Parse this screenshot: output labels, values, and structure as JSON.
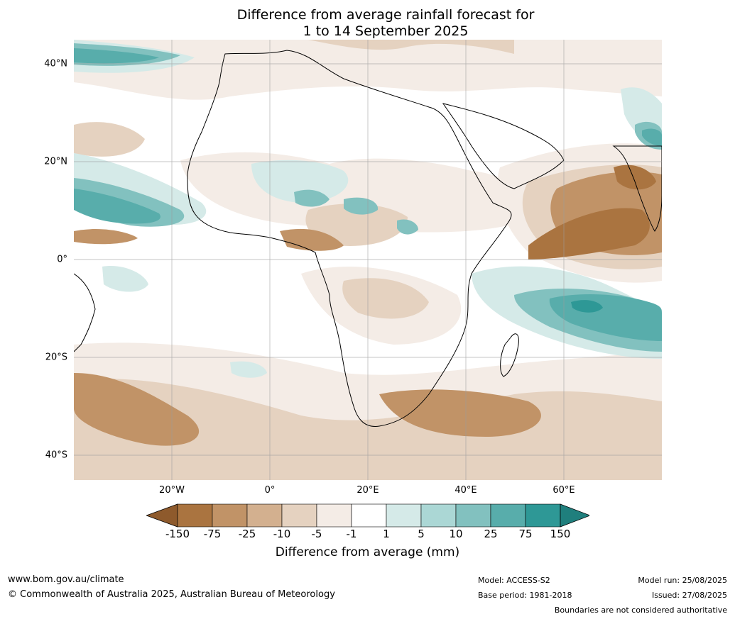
{
  "title": {
    "line1": "Difference from average rainfall forecast for",
    "line2": "1 to 14 September 2025"
  },
  "map": {
    "region": "Africa",
    "lon_labels": [
      "20°W",
      "0°",
      "20°E",
      "40°E",
      "60°E"
    ],
    "lat_labels": [
      "40°N",
      "20°N",
      "0°",
      "20°S",
      "40°S"
    ]
  },
  "colorbar": {
    "ticks": [
      "-150",
      "-75",
      "-25",
      "-10",
      "-5",
      "-1",
      "1",
      "5",
      "10",
      "25",
      "75",
      "150"
    ],
    "colors": [
      "#8e5a2c",
      "#aa7440",
      "#c19367",
      "#d3b08f",
      "#e5d2c0",
      "#f4ece6",
      "#ffffff",
      "#d5eae8",
      "#abd7d5",
      "#82c1bf",
      "#58adab",
      "#2e9896",
      "#1f7f7d"
    ],
    "label": "Difference from average (mm)"
  },
  "footer": {
    "url": "www.bom.gov.au/climate",
    "copyright": "© Commonwealth of Australia 2025, Australian Bureau of Meteorology",
    "model": "Model: ACCESS-S2",
    "base_period": "Base period: 1981-2018",
    "model_run": "Model run: 25/08/2025",
    "issued": "Issued: 27/08/2025",
    "disclaimer": "Boundaries are not considered authoritative"
  }
}
